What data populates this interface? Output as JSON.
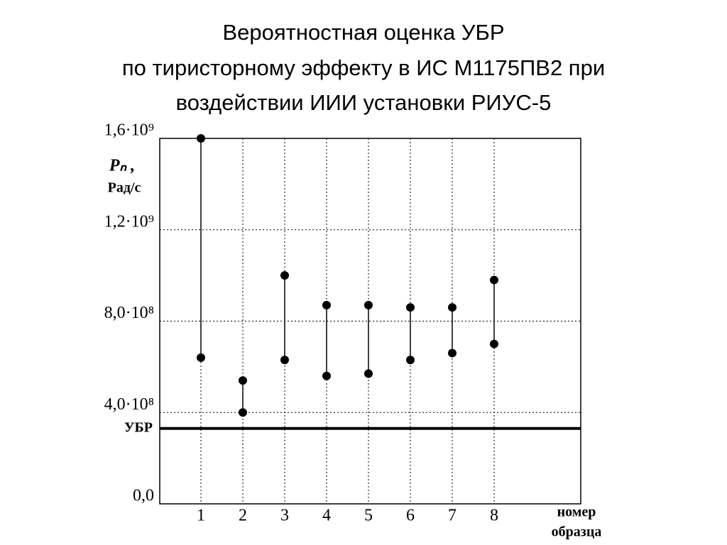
{
  "chart_data": {
    "type": "range",
    "title": [
      "Вероятностная оценка УБР",
      "по тиристорному эффекту в ИС М1175ПВ2 при",
      "воздействии ИИИ установки РИУС-5"
    ],
    "y_label": [
      "Pₙ ,",
      "Рад/с"
    ],
    "x_label": [
      "номер",
      "образца"
    ],
    "categories": [
      "1",
      "2",
      "3",
      "4",
      "5",
      "6",
      "7",
      "8"
    ],
    "low": [
      640000000,
      400000000,
      630000000,
      560000000,
      570000000,
      630000000,
      660000000,
      700000000
    ],
    "high": [
      1600000000,
      540000000,
      1000000000,
      870000000,
      870000000,
      860000000,
      860000000,
      980000000
    ],
    "color": "#000000",
    "reference_line": {
      "label": "УБР",
      "value": 330000000
    },
    "ylim": [
      0,
      1600000000
    ],
    "yticks": [
      {
        "value": 0,
        "label": "0,0"
      },
      {
        "value": 400000000,
        "label": "4,0·10⁸"
      },
      {
        "value": 800000000,
        "label": "8,0·10⁸"
      },
      {
        "value": 1200000000,
        "label": "1,2·10⁹"
      },
      {
        "value": 1600000000,
        "label": "1,6·10⁹"
      }
    ],
    "grid": true
  }
}
